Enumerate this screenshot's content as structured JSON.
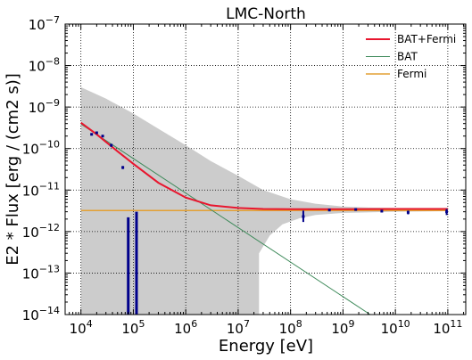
{
  "chart_data": {
    "type": "line",
    "title": "LMC-North",
    "xlabel": "Energy [eV]",
    "ylabel": "E2 * Flux [erg / (cm2 s)]",
    "x_scale": "log",
    "y_scale": "log",
    "xlim": [
      5000,
      220000000000.0
    ],
    "ylim": [
      1e-14,
      1e-07
    ],
    "grid": true,
    "grid_style": "dotted",
    "legend_position": "top-right",
    "x_ticks": [
      {
        "base": "10",
        "exp": "4",
        "value": 10000.0
      },
      {
        "base": "10",
        "exp": "5",
        "value": 100000.0
      },
      {
        "base": "10",
        "exp": "6",
        "value": 1000000.0
      },
      {
        "base": "10",
        "exp": "7",
        "value": 10000000.0
      },
      {
        "base": "10",
        "exp": "8",
        "value": 100000000.0
      },
      {
        "base": "10",
        "exp": "9",
        "value": 1000000000.0
      },
      {
        "base": "10",
        "exp": "10",
        "value": 10000000000.0
      },
      {
        "base": "10",
        "exp": "11",
        "value": 100000000000.0
      }
    ],
    "y_ticks": [
      {
        "base": "10",
        "exp": "−14",
        "value": 1e-14
      },
      {
        "base": "10",
        "exp": "−13",
        "value": 1e-13
      },
      {
        "base": "10",
        "exp": "−12",
        "value": 1e-12
      },
      {
        "base": "10",
        "exp": "−11",
        "value": 1e-11
      },
      {
        "base": "10",
        "exp": "−10",
        "value": 1e-10
      },
      {
        "base": "10",
        "exp": "−9",
        "value": 1e-09
      },
      {
        "base": "10",
        "exp": "−8",
        "value": 1e-08
      },
      {
        "base": "10",
        "exp": "−7",
        "value": 1e-07
      }
    ],
    "series": [
      {
        "name": "BAT+Fermi",
        "kind": "line",
        "color": "#e8162e",
        "x": [
          10000.0,
          20000.0,
          50000.0,
          100000.0,
          300000.0,
          1000000.0,
          3000000.0,
          10000000.0,
          30000000.0,
          100000000.0,
          1000000000.0,
          10000000000.0,
          100000000000.0
        ],
        "y": [
          4.2e-10,
          2.2e-10,
          8.6e-11,
          4.3e-11,
          1.5e-11,
          6.6e-12,
          4.3e-12,
          3.7e-12,
          3.5e-12,
          3.45e-12,
          3.45e-12,
          3.5e-12,
          3.5e-12
        ]
      },
      {
        "name": "BAT",
        "kind": "line",
        "color": "#3e8a5a",
        "x": [
          10000.0,
          3300000000.0
        ],
        "y": [
          3.9e-10,
          1e-14
        ]
      },
      {
        "name": "Fermi",
        "kind": "line",
        "color": "#e3a033",
        "x": [
          10000.0,
          100000000000.0
        ],
        "y": [
          3.2e-12,
          3.2e-12
        ]
      }
    ],
    "band": {
      "color": "#cccccc",
      "upper": {
        "x": [
          10000.0,
          30000.0,
          100000.0,
          300000.0,
          1000000.0,
          3000000.0,
          10000000.0,
          30000000.0,
          100000000.0,
          300000000.0,
          1000000000.0,
          3000000000.0,
          10000000000.0,
          30000000000.0,
          100000000000.0
        ],
        "y": [
          3e-09,
          1.6e-09,
          7e-10,
          3e-10,
          1.2e-10,
          5e-11,
          2.2e-11,
          1e-11,
          6e-12,
          4.7e-12,
          4e-12,
          3.8e-12,
          3.7e-12,
          3.7e-12,
          3.7e-12
        ]
      },
      "lower": {
        "x": [
          10000.0,
          25000000.0,
          25000000.0,
          40000000.0,
          70000000.0,
          150000000.0,
          300000000.0,
          1000000000.0,
          10000000000.0,
          100000000000.0
        ],
        "y": [
          1e-14,
          1e-14,
          3e-13,
          8e-13,
          1.5e-12,
          2.1e-12,
          2.5e-12,
          2.8e-12,
          3e-12,
          3.1e-12
        ]
      }
    },
    "data_points": {
      "color": "#00008b",
      "points": [
        {
          "x": 16000.0,
          "y": 2.2e-10,
          "ylo": 2.1e-10,
          "yhi": 2.3e-10
        },
        {
          "x": 20000.0,
          "y": 2.4e-10,
          "ylo": 2.3e-10,
          "yhi": 2.5e-10
        },
        {
          "x": 26000.0,
          "y": 2e-10,
          "ylo": 1.9e-10,
          "yhi": 2.1e-10
        },
        {
          "x": 38000.0,
          "y": 1.2e-10,
          "ylo": 1.1e-10,
          "yhi": 1.3e-10
        },
        {
          "x": 63000.0,
          "y": 3.5e-11,
          "ylo": 3.2e-11,
          "yhi": 3.8e-11
        },
        {
          "x": 80000.0,
          "y": 1e-14,
          "ylo": 1e-14,
          "yhi": 2.2e-12
        },
        {
          "x": 115000.0,
          "y": 1e-14,
          "ylo": 1e-14,
          "yhi": 3e-12
        },
        {
          "x": 175000000.0,
          "y": 2.3e-12,
          "ylo": 1.7e-12,
          "yhi": 3.2e-12
        },
        {
          "x": 550000000.0,
          "y": 3.3e-12,
          "ylo": 3.1e-12,
          "yhi": 3.5e-12
        },
        {
          "x": 1750000000.0,
          "y": 3.4e-12,
          "ylo": 3.2e-12,
          "yhi": 3.6e-12
        },
        {
          "x": 5500000000.0,
          "y": 3.1e-12,
          "ylo": 2.9e-12,
          "yhi": 3.3e-12
        },
        {
          "x": 17500000000.0,
          "y": 2.9e-12,
          "ylo": 2.6e-12,
          "yhi": 3.2e-12
        },
        {
          "x": 95000000000.0,
          "y": 3e-12,
          "ylo": 2.5e-12,
          "yhi": 3.5e-12
        }
      ]
    }
  }
}
